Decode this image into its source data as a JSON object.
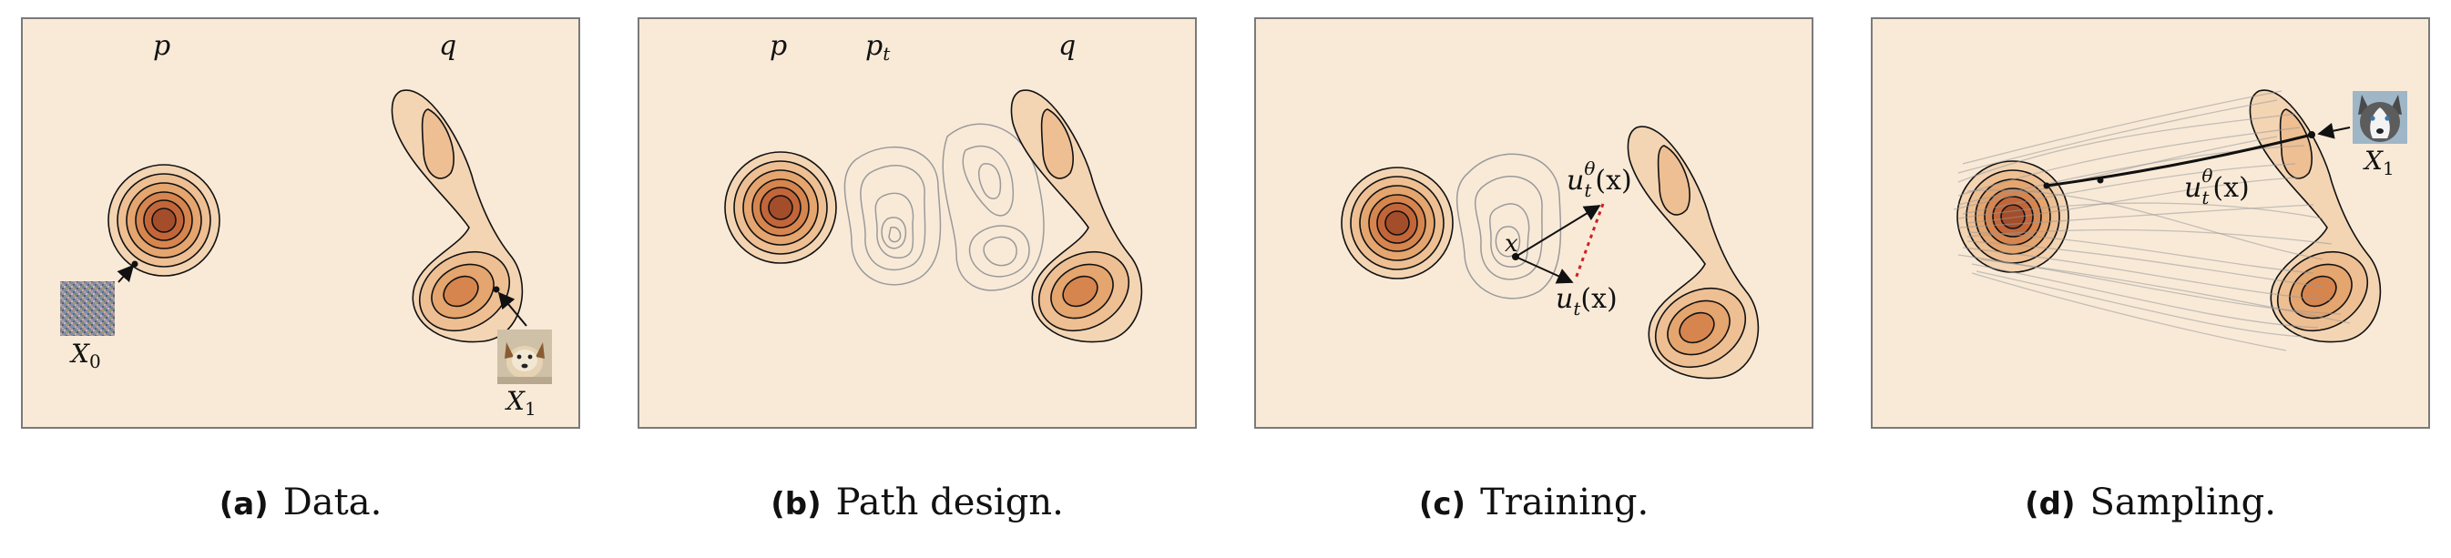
{
  "panels": [
    {
      "id": "a",
      "labels": {
        "p": "p",
        "q": "q",
        "x0_main": "X",
        "x0_sub": "0",
        "x1_main": "X",
        "x1_sub": "1"
      },
      "caption": {
        "letter": "(a)",
        "text": "Data."
      }
    },
    {
      "id": "b",
      "labels": {
        "p": "p",
        "pt_main": "p",
        "pt_sub": "t",
        "q": "q"
      },
      "caption": {
        "letter": "(b)",
        "text": "Path design."
      }
    },
    {
      "id": "c",
      "labels": {
        "x": "x",
        "u_theta_main": "u",
        "u_theta_sub": "t",
        "u_theta_sup": "θ",
        "u_theta_arg": "(x)",
        "u_main": "u",
        "u_sub": "t",
        "u_arg": "(x)"
      },
      "caption": {
        "letter": "(c)",
        "text": "Training."
      }
    },
    {
      "id": "d",
      "labels": {
        "u_theta_main": "u",
        "u_theta_sub": "t",
        "u_theta_sup": "θ",
        "u_theta_arg": "(x)",
        "x1_main": "X",
        "x1_sub": "1"
      },
      "caption": {
        "letter": "(d)",
        "text": "Sampling."
      }
    }
  ],
  "colors": {
    "panel_bg": "#f9ead8",
    "contour_fills": [
      "#f3d5b4",
      "#eebf93",
      "#e4a56f",
      "#d6854e",
      "#c2663a",
      "#a44d2a"
    ],
    "path_contour": "#9a9a9a",
    "trajectory": "#999999",
    "dotted_arrow": "#cc2222"
  },
  "icons": [
    "noise-image",
    "dog-image",
    "husky-image"
  ]
}
